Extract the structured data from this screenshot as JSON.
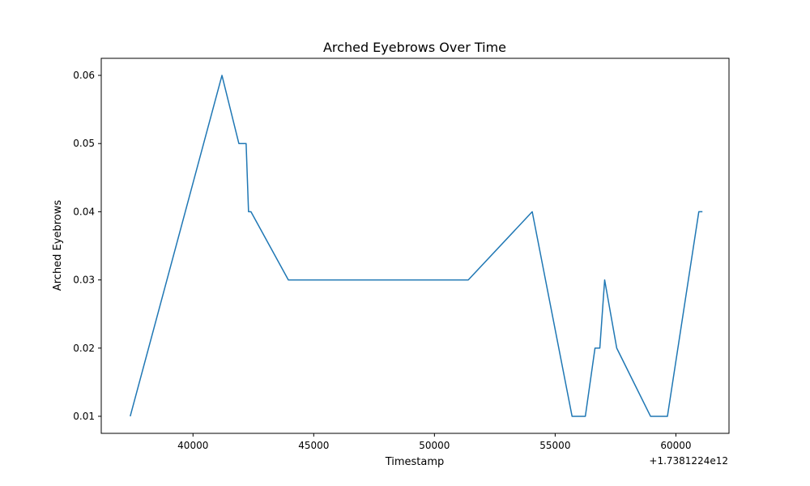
{
  "chart_data": {
    "type": "line",
    "title": "Arched Eyebrows Over Time",
    "xlabel": "Timestamp",
    "ylabel": "Arched Eyebrows",
    "x_offset_label": "+1.7381224e12",
    "xlim": [
      36200,
      62200
    ],
    "ylim": [
      0.0075,
      0.0625
    ],
    "x_ticks": [
      40000,
      45000,
      50000,
      55000,
      60000
    ],
    "x_tick_labels": [
      "40000",
      "45000",
      "50000",
      "55000",
      "60000"
    ],
    "y_ticks": [
      0.01,
      0.02,
      0.03,
      0.04,
      0.05,
      0.06
    ],
    "y_tick_labels": [
      "0.01",
      "0.02",
      "0.03",
      "0.04",
      "0.05",
      "0.06"
    ],
    "grid": false,
    "line_color": "#1f77b4",
    "series": [
      {
        "x": [
          37400,
          41200,
          41900,
          42200,
          42300,
          42400,
          43950,
          51400,
          54050,
          55700,
          56250,
          56650,
          56850,
          57050,
          57550,
          58950,
          59650,
          60950,
          61100
        ],
        "y": [
          0.01,
          0.06,
          0.05,
          0.05,
          0.04,
          0.04,
          0.03,
          0.03,
          0.04,
          0.01,
          0.01,
          0.02,
          0.02,
          0.03,
          0.02,
          0.01,
          0.01,
          0.04,
          0.04
        ]
      }
    ]
  }
}
